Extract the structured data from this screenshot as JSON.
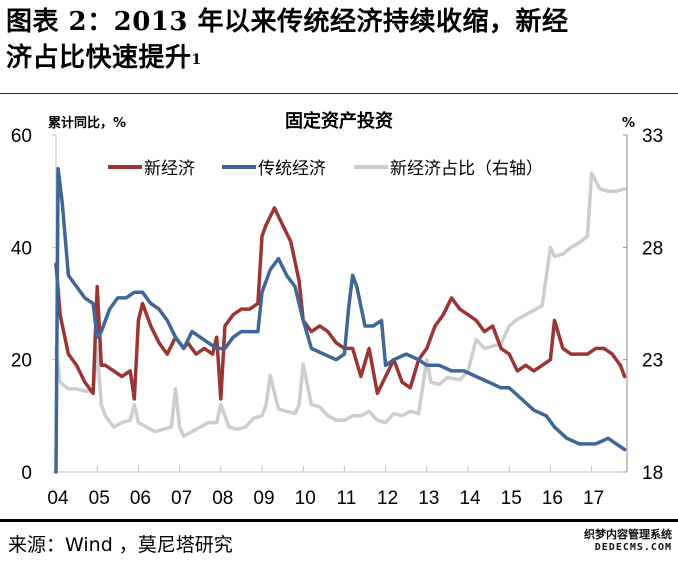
{
  "figure": {
    "title_line1": "图表 2：2013 年以来传统经济持续收缩，新经",
    "title_line2": "济占比快速提升",
    "title_footnote": "1",
    "source": "来源：Wind ，莫尼塔研究",
    "watermark_line1": "织梦内容管理系统",
    "watermark_line2": "DEDECMS.COM"
  },
  "chart_data": {
    "type": "line",
    "title": "固定资产投资",
    "ylabel": "累计同比，%",
    "y2label": "%",
    "xlabel": "",
    "x_tick_labels": [
      "04",
      "05",
      "06",
      "07",
      "08",
      "09",
      "10",
      "11",
      "12",
      "13",
      "14",
      "15",
      "16",
      "17"
    ],
    "ylim": [
      0,
      60
    ],
    "y_ticks": [
      0,
      20,
      40,
      60
    ],
    "y2lim": [
      18,
      33
    ],
    "y2_ticks": [
      18,
      23,
      28,
      33
    ],
    "grid": false,
    "legend_position": "top-center",
    "series": [
      {
        "name": "新经济",
        "axis": "left",
        "color": "#9b3434",
        "x": [
          2004.0,
          2004.1,
          2004.3,
          2004.5,
          2004.7,
          2004.9,
          2005.0,
          2005.1,
          2005.2,
          2005.4,
          2005.6,
          2005.8,
          2005.9,
          2006.0,
          2006.1,
          2006.3,
          2006.5,
          2006.7,
          2006.9,
          2007.0,
          2007.1,
          2007.2,
          2007.4,
          2007.6,
          2007.8,
          2007.9,
          2008.0,
          2008.1,
          2008.3,
          2008.5,
          2008.7,
          2008.9,
          2009.0,
          2009.1,
          2009.3,
          2009.5,
          2009.7,
          2009.9,
          2010.0,
          2010.2,
          2010.4,
          2010.6,
          2010.8,
          2011.0,
          2011.2,
          2011.4,
          2011.6,
          2011.8,
          2012.0,
          2012.2,
          2012.4,
          2012.6,
          2012.8,
          2013.0,
          2013.2,
          2013.4,
          2013.6,
          2013.8,
          2014.0,
          2014.2,
          2014.4,
          2014.6,
          2014.8,
          2015.0,
          2015.2,
          2015.4,
          2015.6,
          2015.8,
          2016.0,
          2016.1,
          2016.3,
          2016.5,
          2016.7,
          2016.9,
          2017.1,
          2017.3,
          2017.5,
          2017.7,
          2017.8
        ],
        "values": [
          37,
          28,
          21,
          19,
          16,
          14,
          33,
          19,
          19,
          18,
          17,
          18,
          13,
          27,
          30,
          26,
          23,
          21,
          24,
          23,
          22,
          23,
          21,
          22,
          21,
          24,
          13,
          26,
          28,
          29,
          29,
          30,
          42,
          44,
          47,
          44,
          41,
          34,
          27,
          25,
          26,
          25,
          23,
          22,
          22,
          17,
          22,
          14,
          17,
          20,
          16,
          15,
          20,
          22,
          26,
          28,
          31,
          29,
          28,
          27,
          25,
          26,
          22,
          21,
          18,
          19,
          18,
          19,
          20,
          27,
          22,
          21,
          21,
          21,
          22,
          22,
          21,
          19,
          17
        ]
      },
      {
        "name": "传统经济",
        "axis": "left",
        "color": "#3e6796",
        "x": [
          2004.0,
          2004.05,
          2004.15,
          2004.3,
          2004.5,
          2004.7,
          2004.9,
          2005.0,
          2005.1,
          2005.3,
          2005.5,
          2005.7,
          2005.9,
          2006.1,
          2006.3,
          2006.5,
          2006.7,
          2006.9,
          2007.1,
          2007.3,
          2007.5,
          2007.7,
          2007.9,
          2008.1,
          2008.3,
          2008.5,
          2008.7,
          2008.9,
          2009.0,
          2009.2,
          2009.4,
          2009.6,
          2009.8,
          2010.0,
          2010.2,
          2010.5,
          2010.8,
          2011.0,
          2011.1,
          2011.2,
          2011.3,
          2011.5,
          2011.7,
          2011.9,
          2012.0,
          2012.2,
          2012.5,
          2012.8,
          2013.0,
          2013.3,
          2013.6,
          2013.9,
          2014.2,
          2014.5,
          2014.8,
          2015.0,
          2015.3,
          2015.6,
          2015.9,
          2016.1,
          2016.4,
          2016.7,
          2016.9,
          2017.1,
          2017.4,
          2017.6,
          2017.8
        ],
        "values": [
          0,
          54,
          48,
          35,
          33,
          31,
          30,
          24,
          25,
          29,
          31,
          31,
          32,
          32,
          30,
          29,
          27,
          24,
          22,
          25,
          24,
          23,
          22,
          22,
          24,
          25,
          25,
          25,
          32,
          36,
          38,
          35,
          33,
          27,
          22,
          21,
          20,
          21,
          29,
          35,
          33,
          26,
          26,
          27,
          19,
          20,
          21,
          20,
          19,
          19,
          18,
          18,
          17,
          16,
          15,
          15,
          13,
          11,
          10,
          8,
          6,
          5,
          5,
          5,
          6,
          5,
          4
        ]
      },
      {
        "name": "新经济占比（右轴）",
        "axis": "right",
        "color": "#cdcdcd",
        "x": [
          2004.0,
          2004.1,
          2004.3,
          2004.5,
          2004.7,
          2004.9,
          2005.0,
          2005.1,
          2005.2,
          2005.4,
          2005.6,
          2005.8,
          2005.9,
          2006.0,
          2006.2,
          2006.4,
          2006.6,
          2006.8,
          2006.9,
          2007.0,
          2007.1,
          2007.3,
          2007.5,
          2007.7,
          2007.9,
          2008.0,
          2008.2,
          2008.4,
          2008.6,
          2008.8,
          2009.0,
          2009.1,
          2009.2,
          2009.4,
          2009.6,
          2009.8,
          2009.9,
          2010.0,
          2010.2,
          2010.4,
          2010.6,
          2010.8,
          2011.0,
          2011.2,
          2011.4,
          2011.6,
          2011.8,
          2012.0,
          2012.2,
          2012.4,
          2012.6,
          2012.8,
          2013.0,
          2013.1,
          2013.3,
          2013.5,
          2013.8,
          2014.0,
          2014.2,
          2014.4,
          2014.6,
          2014.8,
          2015.0,
          2015.2,
          2015.4,
          2015.6,
          2015.8,
          2016.0,
          2016.1,
          2016.3,
          2016.5,
          2016.7,
          2016.9,
          2017.0,
          2017.2,
          2017.4,
          2017.6,
          2017.8
        ],
        "values": [
          23.5,
          22,
          21.7,
          21.7,
          21.6,
          21.6,
          23.5,
          21,
          20.5,
          20,
          20.2,
          20.3,
          21,
          20.2,
          20,
          19.8,
          19.9,
          20,
          21.7,
          20,
          19.6,
          19.8,
          20,
          20.2,
          20.2,
          21,
          20,
          19.9,
          20,
          20.4,
          20.5,
          21,
          22.3,
          20.8,
          20.7,
          20.6,
          21,
          22.8,
          21,
          20.9,
          20.5,
          20.3,
          20.3,
          20.5,
          20.5,
          20.7,
          20.3,
          20.2,
          20.6,
          20.5,
          20.7,
          20.6,
          23,
          22,
          21.9,
          22.2,
          22.1,
          22.5,
          23.9,
          23.5,
          23.6,
          23.7,
          24.5,
          24.8,
          25,
          25.2,
          25.4,
          28,
          27.6,
          27.7,
          28,
          28.2,
          28.5,
          31.3,
          30.6,
          30.5,
          30.5,
          30.6
        ]
      }
    ]
  }
}
